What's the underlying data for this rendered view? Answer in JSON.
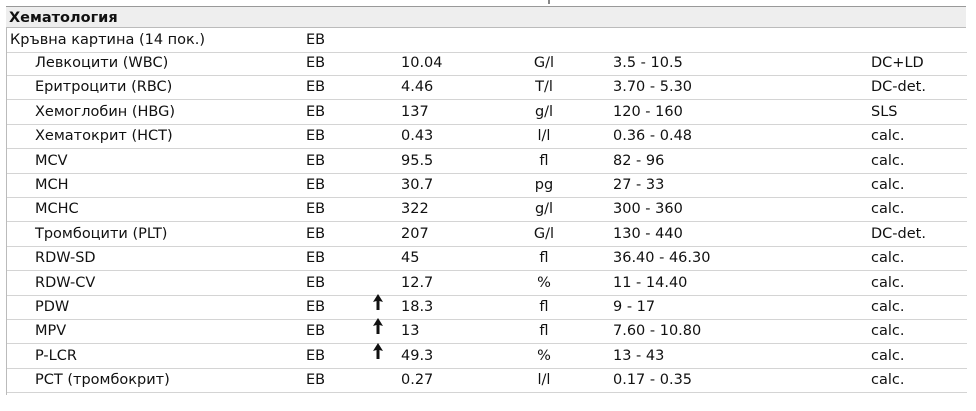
{
  "header": {
    "title": "Хематология"
  },
  "group": {
    "label": "Кръвна картина (14 пок.)",
    "source": "ЕВ"
  },
  "rows": [
    [
      "Левкоцити (WBC)",
      "ЕВ",
      "10.04",
      "G/l",
      "3.5 - 10.5",
      "DC+LD"
    ],
    [
      "Еритроцити (RBC)",
      "ЕВ",
      "4.46",
      "T/l",
      "3.70 - 5.30",
      "DC-det."
    ],
    [
      "Хемоглобин (HBG)",
      "ЕВ",
      "137",
      "g/l",
      "120 - 160",
      "SLS"
    ],
    [
      "Хематокрит (HCT)",
      "ЕВ",
      "0.43",
      "l/l",
      "0.36 - 0.48",
      "calc."
    ],
    [
      "MCV",
      "ЕВ",
      "95.5",
      "fl",
      "82 - 96",
      "calc."
    ],
    [
      "MCH",
      "ЕВ",
      "30.7",
      "pg",
      "27 - 33",
      "calc."
    ],
    [
      "MCHC",
      "ЕВ",
      "322",
      "g/l",
      "300 - 360",
      "calc."
    ],
    [
      "Тромбоцити (PLT)",
      "ЕВ",
      "207",
      "G/l",
      "130 - 440",
      "DC-det."
    ],
    [
      "RDW-SD",
      "ЕВ",
      "45",
      "fl",
      "36.40 - 46.30",
      "calc."
    ],
    [
      "RDW-CV",
      "ЕВ",
      "12.7",
      "%",
      "11 - 14.40",
      "calc."
    ],
    [
      "PDW",
      "ЕВ",
      "18.3",
      "fl",
      "9 - 17",
      "calc."
    ],
    [
      "MPV",
      "ЕВ",
      "13",
      "fl",
      "7.60 - 10.80",
      "calc."
    ],
    [
      "P-LCR",
      "ЕВ",
      "49.3",
      "%",
      "13 - 43",
      "calc."
    ],
    [
      "PCT (тромбокрит)",
      "ЕВ",
      "0.27",
      "l/l",
      "0.17 - 0.35",
      "calc."
    ]
  ]
}
